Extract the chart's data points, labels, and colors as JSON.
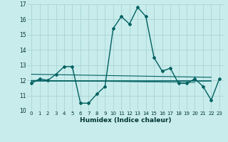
{
  "xlabel": "Humidex (Indice chaleur)",
  "bg_color": "#c8ecec",
  "grid_color": "#aad4d4",
  "line_color": "#006060",
  "xlim": [
    -0.5,
    23.5
  ],
  "ylim": [
    10,
    17
  ],
  "xticks": [
    0,
    1,
    2,
    3,
    4,
    5,
    6,
    7,
    8,
    9,
    10,
    11,
    12,
    13,
    14,
    15,
    16,
    17,
    18,
    19,
    20,
    21,
    22,
    23
  ],
  "yticks": [
    10,
    11,
    12,
    13,
    14,
    15,
    16,
    17
  ],
  "series1_x": [
    0,
    1,
    2,
    3,
    4,
    5,
    6,
    7,
    8,
    9,
    10,
    11,
    12,
    13,
    14,
    15,
    16,
    17,
    18,
    19,
    20,
    21,
    22,
    23
  ],
  "series1_y": [
    11.8,
    12.1,
    12.0,
    12.4,
    12.9,
    12.9,
    10.5,
    10.5,
    11.1,
    11.6,
    15.4,
    16.2,
    15.7,
    16.8,
    16.2,
    13.5,
    12.6,
    12.8,
    11.8,
    11.8,
    12.1,
    11.6,
    10.7,
    12.1
  ],
  "series2_x": [
    0,
    22
  ],
  "series2_y": [
    12.4,
    12.2
  ],
  "series3_x": [
    0,
    22
  ],
  "series3_y": [
    11.95,
    11.95
  ],
  "series4_x": [
    0,
    20
  ],
  "series4_y": [
    12.0,
    11.85
  ]
}
